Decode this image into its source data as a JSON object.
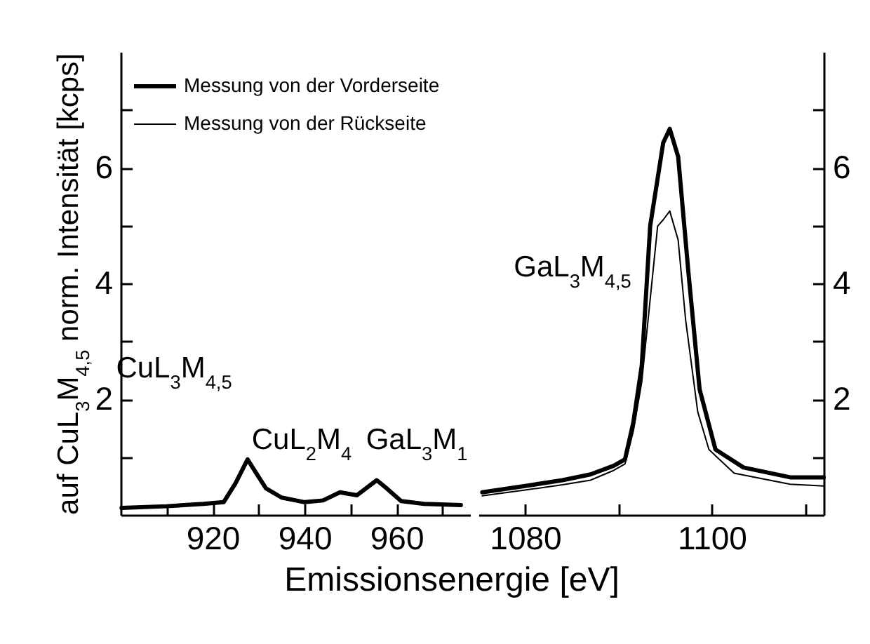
{
  "chart_data": [
    {
      "type": "line",
      "ylabel": "auf CuL$_{3}$M$_{4,5}$ norm. Intensität [kcps]",
      "xlabel": "Emissionsenergie [eV]",
      "xlim": [
        900,
        976
      ],
      "ylim": [
        0,
        8
      ],
      "xticks": [
        {
          "value": 910,
          "label": null
        },
        920,
        {
          "value": 930,
          "label": null
        },
        940,
        {
          "value": 950,
          "label": null
        },
        960,
        {
          "value": 970,
          "label": null
        }
      ],
      "yticks": [
        {
          "value": 1,
          "label": null
        },
        2,
        {
          "value": 3,
          "label": null
        },
        4,
        {
          "value": 5,
          "label": null
        },
        6,
        {
          "value": 7,
          "label": null
        }
      ],
      "legend": "top left",
      "series": [
        {
          "name": "Messung von der Vorderseite",
          "color": "#000000",
          "x": [
            900.2,
            910,
            918,
            922.4,
            925,
            927.6,
            929.5,
            931.6,
            935,
            940,
            944,
            947.7,
            951.4,
            955.7,
            958,
            961,
            966,
            974
          ],
          "values": [
            0.12,
            0.15,
            0.19,
            0.22,
            0.55,
            0.96,
            0.72,
            0.46,
            0.3,
            0.22,
            0.25,
            0.39,
            0.34,
            0.6,
            0.45,
            0.24,
            0.19,
            0.17
          ]
        },
        {
          "name": "Messung von der Rückseite",
          "color": "#000000"
        }
      ],
      "annotations": [
        "CuL$_{3}$M$_{4,5}$",
        "CuL$_{2}$M$_{4}$",
        "GaL$_{3}$M$_{1}$"
      ]
    },
    {
      "type": "line",
      "xlim": [
        1075,
        1112
      ],
      "ylim": [
        0,
        8
      ],
      "xticks": [
        1080,
        {
          "value": 1090,
          "label": null
        },
        1100,
        {
          "value": 1110,
          "label": null
        }
      ],
      "yticks": [
        {
          "value": 1,
          "label": null
        },
        2,
        {
          "value": 3,
          "label": null
        },
        4,
        {
          "value": 5,
          "label": null
        },
        6,
        {
          "value": 7,
          "label": null
        }
      ],
      "series": [
        {
          "color": "#000000",
          "x": [
            1075.4,
            1080,
            1084,
            1087,
            1089.5,
            1090.7,
            1091.6,
            1092.5,
            1093.4,
            1094.8,
            1095.5,
            1096.4,
            1097.5,
            1098.7,
            1100.4,
            1103.4,
            1108.4,
            1112
          ],
          "values": [
            0.39,
            0.5,
            0.6,
            0.7,
            0.85,
            0.96,
            1.6,
            2.58,
            4.99,
            6.43,
            6.67,
            6.19,
            4.19,
            2.17,
            1.13,
            0.82,
            0.65,
            0.65
          ]
        },
        {
          "color": "#000000",
          "x": [
            1075.4,
            1080,
            1084,
            1087,
            1089.5,
            1090.7,
            1091.6,
            1092.5,
            1094.2,
            1094.8,
            1095.5,
            1096.4,
            1097.2,
            1098.5,
            1099.7,
            1102.4,
            1108.4,
            1112
          ],
          "values": [
            0.33,
            0.43,
            0.52,
            0.6,
            0.77,
            0.88,
            1.45,
            2.3,
            4.99,
            5.1,
            5.25,
            4.75,
            3.37,
            1.78,
            1.13,
            0.72,
            0.53,
            0.5
          ]
        }
      ],
      "annotations": [
        "GaL$_{3}$M$_{4,5}$"
      ]
    }
  ]
}
